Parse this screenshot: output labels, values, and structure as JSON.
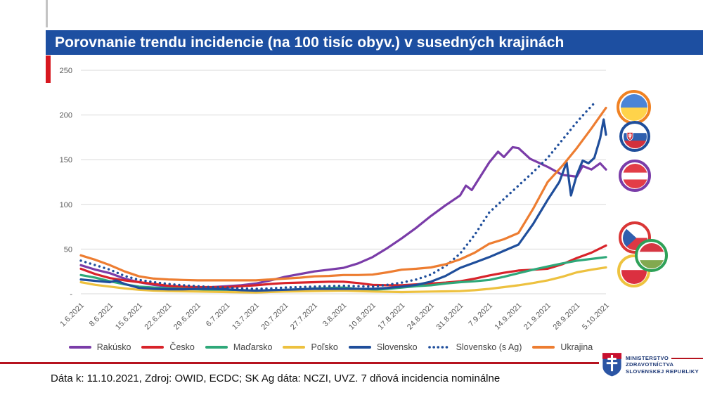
{
  "title_bar": {
    "text": "Porovnanie trendu incidencie (na 100 tisíc obyv.) v susedných krajinách",
    "bg": "#1d4fa1"
  },
  "accent": {
    "red_bar": "#d7171f",
    "separator": "#b6131f",
    "gray_mark": "#c3c3c3"
  },
  "caption": {
    "text": "Dáta k: 11.10.2021, Zdroj: OWID, ECDC; SK Ag dáta: NCZI, UVZ. 7 dňová incidencia nominálne"
  },
  "ministry": {
    "line1": "MINISTERSTVO",
    "line2": "ZDRAVOTNÍCTVA",
    "line3": "SLOVENSKEJ REPUBLIKY"
  },
  "chart_data": {
    "type": "line",
    "title": "Porovnanie trendu incidencie (na 100 tisíc obyv.) v susedných krajinách",
    "xlabel": "",
    "ylabel": "",
    "ylim": [
      0,
      250
    ],
    "grid": true,
    "legend_position": "bottom",
    "axis_label_color": "#595959",
    "grid_color": "#d9d9d9",
    "x_labels": [
      "1.6.2021",
      "8.6.2021",
      "15.6.2021",
      "22.6.2021",
      "29.6.2021",
      "6.7.2021",
      "13.7.2021",
      "20.7.2021",
      "27.7.2021",
      "3.8.2021",
      "10.8.2021",
      "17.8.2021",
      "24.8.2021",
      "31.8.2021",
      "7.9.2021",
      "14.9.2021",
      "21.9.2021",
      "28.9.2021",
      "5.10.2021"
    ],
    "y_ticks": [
      {
        "v": 250,
        "label": "250"
      },
      {
        "v": 200,
        "label": "200"
      },
      {
        "v": 150,
        "label": "150"
      },
      {
        "v": 100,
        "label": "100"
      },
      {
        "v": 50,
        "label": "50"
      },
      {
        "v": 0,
        "label": "-"
      }
    ],
    "series": [
      {
        "name": "Rakúsko",
        "color": "#7a3ca8",
        "style": "solid",
        "points": [
          [
            0,
            32
          ],
          [
            0.5,
            27
          ],
          [
            1,
            23
          ],
          [
            1.5,
            17
          ],
          [
            2,
            13
          ],
          [
            2.5,
            10
          ],
          [
            3,
            8
          ],
          [
            3.5,
            7.5
          ],
          [
            4,
            7
          ],
          [
            4.5,
            7.5
          ],
          [
            5,
            8.5
          ],
          [
            5.5,
            9.5
          ],
          [
            6,
            11.5
          ],
          [
            6.5,
            15
          ],
          [
            7,
            19
          ],
          [
            7.5,
            22
          ],
          [
            8,
            25
          ],
          [
            8.5,
            27
          ],
          [
            9,
            29
          ],
          [
            9.5,
            34
          ],
          [
            10,
            41
          ],
          [
            10.5,
            51
          ],
          [
            11,
            62
          ],
          [
            11.5,
            74
          ],
          [
            12,
            87
          ],
          [
            12.5,
            99
          ],
          [
            13,
            110
          ],
          [
            13.2,
            121
          ],
          [
            13.4,
            116
          ],
          [
            14,
            147
          ],
          [
            14.3,
            159
          ],
          [
            14.5,
            153
          ],
          [
            14.8,
            164
          ],
          [
            15,
            163
          ],
          [
            15.4,
            151
          ],
          [
            16,
            142
          ],
          [
            16.5,
            133
          ],
          [
            17,
            131
          ],
          [
            17.2,
            143
          ],
          [
            17.5,
            139
          ],
          [
            17.8,
            146
          ],
          [
            18,
            139
          ]
        ]
      },
      {
        "name": "Česko",
        "color": "#d8232a",
        "style": "solid",
        "points": [
          [
            0,
            28
          ],
          [
            0.5,
            22
          ],
          [
            1,
            17.5
          ],
          [
            1.5,
            15
          ],
          [
            2,
            13
          ],
          [
            2.5,
            11
          ],
          [
            3,
            9
          ],
          [
            3.5,
            8
          ],
          [
            4,
            7.5
          ],
          [
            4.5,
            7.5
          ],
          [
            5,
            7.5
          ],
          [
            5.5,
            8.5
          ],
          [
            6,
            9.5
          ],
          [
            6.5,
            11
          ],
          [
            7,
            12
          ],
          [
            7.5,
            12.5
          ],
          [
            8,
            13
          ],
          [
            8.5,
            13.5
          ],
          [
            9,
            13.5
          ],
          [
            9.5,
            12
          ],
          [
            10,
            10
          ],
          [
            10.5,
            9.5
          ],
          [
            11,
            9.5
          ],
          [
            11.5,
            10.5
          ],
          [
            12,
            11.5
          ],
          [
            12.5,
            12.5
          ],
          [
            13,
            14
          ],
          [
            13.5,
            17
          ],
          [
            14,
            20.5
          ],
          [
            14.5,
            23.5
          ],
          [
            15,
            26
          ],
          [
            15.5,
            27
          ],
          [
            16,
            28
          ],
          [
            16.5,
            33
          ],
          [
            17,
            40
          ],
          [
            17.5,
            46
          ],
          [
            18,
            54
          ]
        ]
      },
      {
        "name": "Maďarsko",
        "color": "#2ea879",
        "style": "solid",
        "points": [
          [
            0,
            21
          ],
          [
            0.5,
            18
          ],
          [
            1,
            14
          ],
          [
            1.5,
            10.5
          ],
          [
            2,
            8
          ],
          [
            2.5,
            7
          ],
          [
            3,
            6
          ],
          [
            3.5,
            5.5
          ],
          [
            4,
            5
          ],
          [
            4.5,
            4.5
          ],
          [
            5,
            4.5
          ],
          [
            5.5,
            4
          ],
          [
            6,
            3.5
          ],
          [
            6.5,
            4
          ],
          [
            7,
            4.5
          ],
          [
            7.5,
            5
          ],
          [
            8,
            6
          ],
          [
            8.5,
            6.5
          ],
          [
            9,
            7
          ],
          [
            9.5,
            5.5
          ],
          [
            10,
            4.5
          ],
          [
            10.5,
            5.5
          ],
          [
            11,
            7
          ],
          [
            11.5,
            8.5
          ],
          [
            12,
            9.5
          ],
          [
            12.5,
            11.5
          ],
          [
            13,
            13
          ],
          [
            13.5,
            14
          ],
          [
            14,
            15.5
          ],
          [
            14.5,
            19
          ],
          [
            15,
            23
          ],
          [
            15.5,
            27
          ],
          [
            16,
            30.5
          ],
          [
            16.5,
            34
          ],
          [
            17,
            37
          ],
          [
            17.5,
            39
          ],
          [
            18,
            41
          ]
        ]
      },
      {
        "name": "Poľsko",
        "color": "#edc13f",
        "style": "solid",
        "points": [
          [
            0,
            13
          ],
          [
            0.5,
            10
          ],
          [
            1,
            8
          ],
          [
            1.5,
            6
          ],
          [
            2,
            4.5
          ],
          [
            2.5,
            3.5
          ],
          [
            3,
            3
          ],
          [
            4,
            2.5
          ],
          [
            5,
            2
          ],
          [
            6,
            1.5
          ],
          [
            7,
            2.5
          ],
          [
            8,
            3
          ],
          [
            9,
            3.5
          ],
          [
            10,
            2.5
          ],
          [
            11,
            2
          ],
          [
            12,
            2.5
          ],
          [
            13,
            3
          ],
          [
            13.5,
            4
          ],
          [
            14,
            5.5
          ],
          [
            14.5,
            7.5
          ],
          [
            15,
            9.5
          ],
          [
            15.5,
            12
          ],
          [
            16,
            15
          ],
          [
            16.5,
            19
          ],
          [
            17,
            24
          ],
          [
            17.5,
            27
          ],
          [
            18,
            29.5
          ]
        ]
      },
      {
        "name": "Slovensko",
        "color": "#1f4e9b",
        "style": "solid",
        "points": [
          [
            0,
            16
          ],
          [
            0.5,
            14.5
          ],
          [
            1,
            13
          ],
          [
            1.2,
            15
          ],
          [
            1.5,
            11
          ],
          [
            2,
            6.5
          ],
          [
            2.5,
            5.5
          ],
          [
            3,
            5
          ],
          [
            3.5,
            5
          ],
          [
            4,
            5.5
          ],
          [
            4.5,
            5.5
          ],
          [
            5,
            5
          ],
          [
            5.5,
            4
          ],
          [
            6,
            3.5
          ],
          [
            6.5,
            4
          ],
          [
            7,
            4.5
          ],
          [
            7.5,
            5
          ],
          [
            8,
            5.5
          ],
          [
            8.5,
            5.5
          ],
          [
            9,
            5.5
          ],
          [
            9.5,
            5.5
          ],
          [
            10,
            5.5
          ],
          [
            10.5,
            6.5
          ],
          [
            11,
            8
          ],
          [
            11.5,
            10
          ],
          [
            12,
            13.5
          ],
          [
            12.5,
            20
          ],
          [
            13,
            29
          ],
          [
            13.5,
            35
          ],
          [
            14,
            41
          ],
          [
            14.5,
            48
          ],
          [
            15,
            55
          ],
          [
            15.5,
            78
          ],
          [
            16,
            105
          ],
          [
            16.4,
            125
          ],
          [
            16.65,
            147
          ],
          [
            16.8,
            110
          ],
          [
            17,
            133
          ],
          [
            17.2,
            149
          ],
          [
            17.4,
            146
          ],
          [
            17.6,
            152
          ],
          [
            17.8,
            174
          ],
          [
            17.92,
            195
          ],
          [
            18,
            178
          ]
        ]
      },
      {
        "name": "Slovensko (s Ag)",
        "color": "#1f4e9b",
        "style": "dotted",
        "points": [
          [
            0,
            37
          ],
          [
            0.5,
            32
          ],
          [
            1,
            27
          ],
          [
            1.5,
            20
          ],
          [
            2,
            15.5
          ],
          [
            2.5,
            13
          ],
          [
            3,
            11
          ],
          [
            3.5,
            9.5
          ],
          [
            4,
            8.5
          ],
          [
            4.5,
            7.5
          ],
          [
            5,
            7
          ],
          [
            5.5,
            6
          ],
          [
            6,
            5.5
          ],
          [
            6.5,
            6
          ],
          [
            7,
            7
          ],
          [
            7.5,
            7.5
          ],
          [
            8,
            8
          ],
          [
            8.5,
            8.5
          ],
          [
            9,
            9
          ],
          [
            9.5,
            8.5
          ],
          [
            10,
            8
          ],
          [
            10.5,
            10
          ],
          [
            11,
            12.5
          ],
          [
            11.5,
            16
          ],
          [
            12,
            21.5
          ],
          [
            12.5,
            31
          ],
          [
            13,
            45
          ],
          [
            13.5,
            66
          ],
          [
            14,
            91
          ],
          [
            14.5,
            106
          ],
          [
            15,
            121
          ],
          [
            15.5,
            136
          ],
          [
            16,
            152
          ],
          [
            16.5,
            172
          ],
          [
            17,
            192
          ],
          [
            17.3,
            203
          ],
          [
            17.65,
            215
          ]
        ]
      },
      {
        "name": "Ukrajina",
        "color": "#ed7d31",
        "style": "solid",
        "points": [
          [
            0,
            43
          ],
          [
            0.5,
            38
          ],
          [
            1,
            32
          ],
          [
            1.5,
            25
          ],
          [
            2,
            19.5
          ],
          [
            2.5,
            17
          ],
          [
            3,
            16
          ],
          [
            3.5,
            15.5
          ],
          [
            4,
            15
          ],
          [
            5,
            15
          ],
          [
            6,
            15
          ],
          [
            6.5,
            16
          ],
          [
            7,
            17
          ],
          [
            7.5,
            18
          ],
          [
            8,
            19.5
          ],
          [
            8.5,
            20
          ],
          [
            9,
            21
          ],
          [
            9.5,
            21
          ],
          [
            10,
            21.5
          ],
          [
            10.5,
            24
          ],
          [
            11,
            27
          ],
          [
            11.5,
            28
          ],
          [
            12,
            29.5
          ],
          [
            12.5,
            33
          ],
          [
            13,
            38.5
          ],
          [
            13.5,
            46
          ],
          [
            14,
            56
          ],
          [
            14.5,
            61
          ],
          [
            15,
            68
          ],
          [
            15.5,
            95
          ],
          [
            16,
            125
          ],
          [
            16.5,
            143
          ],
          [
            17,
            163
          ],
          [
            17.5,
            185
          ],
          [
            18,
            208
          ]
        ]
      }
    ]
  },
  "flags": [
    {
      "name": "ukraine",
      "ring": "#f08223",
      "stripes": [
        [
          "#4b84d6",
          0.5
        ],
        [
          "#ffd34a",
          0.5
        ]
      ]
    },
    {
      "name": "slovakia",
      "ring": "#1f4e9b",
      "stripes": [
        [
          "#ffffff",
          0.34
        ],
        [
          "#2f5fae",
          0.33
        ],
        [
          "#d2303c",
          0.33
        ]
      ],
      "emblem": true
    },
    {
      "name": "austria",
      "ring": "#7a3ca8",
      "stripes": [
        [
          "#e23d47",
          0.36
        ],
        [
          "#ffffff",
          0.28
        ],
        [
          "#e23d47",
          0.36
        ]
      ]
    },
    {
      "name": "czechia",
      "ring": "#d93636",
      "stripes": [
        [
          "#ffffff",
          0.5
        ],
        [
          "#de3844",
          0.5
        ]
      ],
      "triangle": "#2f5fae"
    },
    {
      "name": "hungary",
      "ring": "#2ea158",
      "stripes": [
        [
          "#d63742",
          0.34
        ],
        [
          "#ffffff",
          0.33
        ],
        [
          "#82a94f",
          0.33
        ]
      ]
    },
    {
      "name": "poland",
      "ring": "#eec33f",
      "stripes": [
        [
          "#ffffff",
          0.45
        ],
        [
          "#db3040",
          0.55
        ]
      ]
    }
  ]
}
